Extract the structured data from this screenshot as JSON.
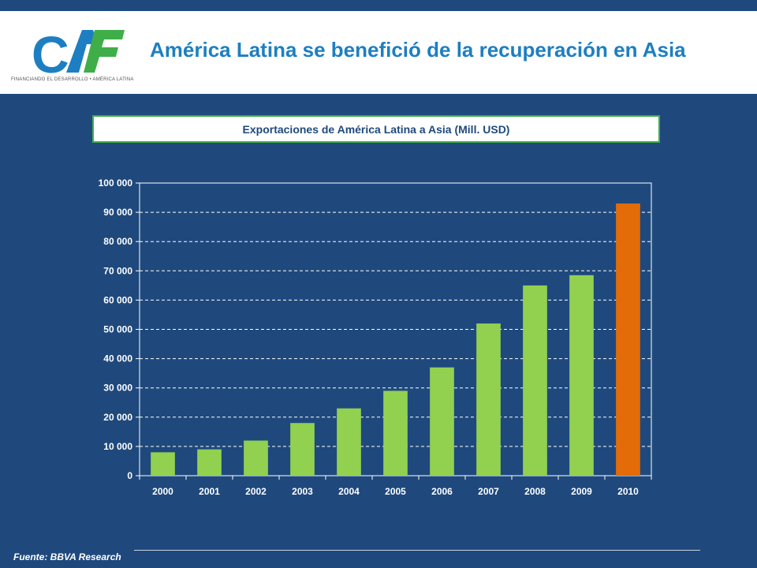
{
  "header": {
    "logo_text": "CAF",
    "logo_tagline": "FINANCIANDO EL DESARROLLO  •  AMÉRICA LATINA",
    "title": "América Latina se benefició de la recuperación en Asia"
  },
  "colors": {
    "background": "#1f497d",
    "title": "#1d7fc1",
    "bar_default": "#92d050",
    "bar_highlight": "#e36c09",
    "logo_blue": "#1d7fc1",
    "logo_green": "#3fae49"
  },
  "chart_data": {
    "type": "bar",
    "title": "Exportaciones de América Latina a Asia (Mill. USD)",
    "categories": [
      "2000",
      "2001",
      "2002",
      "2003",
      "2004",
      "2005",
      "2006",
      "2007",
      "2008",
      "2009",
      "2010"
    ],
    "values": [
      8000,
      9000,
      12000,
      18000,
      23000,
      29000,
      37000,
      52000,
      65000,
      68500,
      93000
    ],
    "highlight": [
      "2010"
    ],
    "ylim": [
      0,
      100000
    ],
    "yticks": [
      0,
      10000,
      20000,
      30000,
      40000,
      50000,
      60000,
      70000,
      80000,
      90000,
      100000
    ],
    "ytick_labels": [
      "0",
      "10 000",
      "20 000",
      "30 000",
      "40 000",
      "50 000",
      "60 000",
      "70 000",
      "80 000",
      "90 000",
      "100 000"
    ],
    "xlabel": "",
    "ylabel": "",
    "grid": "dashed horizontal",
    "legend": "none"
  },
  "footer": {
    "source": "Fuente: BBVA Research"
  }
}
